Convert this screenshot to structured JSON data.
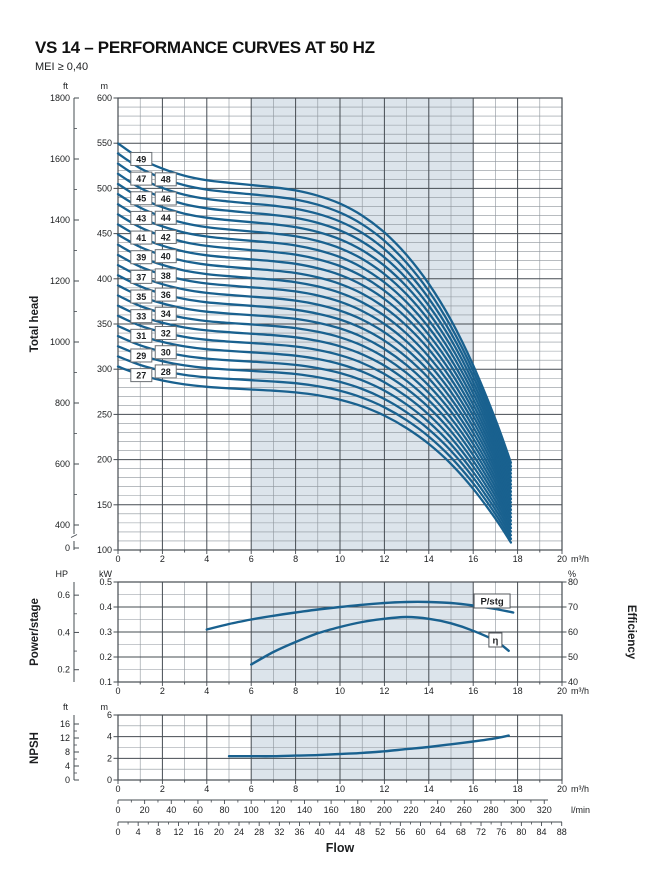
{
  "header": {
    "title": "VS 14 – PERFORMANCE CURVES AT 50 HZ",
    "mei": "MEI ≥ 0,40"
  },
  "colors": {
    "curve": "#19618f",
    "duty_band": "#dce4eb",
    "grid_minor": "#8d949b",
    "grid_major": "#464c52",
    "text": "#1c1e20"
  },
  "flow_axis": {
    "ticks": [
      0,
      2,
      4,
      6,
      8,
      10,
      12,
      14,
      16,
      18,
      20
    ],
    "minor_step": 1,
    "max": 20,
    "unit": "m³/h",
    "duty_band": [
      6,
      16
    ]
  },
  "chart_data": [
    {
      "type": "line",
      "name": "total-head",
      "axis_title": "Total head",
      "y_axis_m": {
        "unit": "m",
        "ticks": [
          600,
          550,
          500,
          450,
          400,
          350,
          300,
          250,
          200,
          150,
          100
        ],
        "minor_step": 10,
        "min": 100,
        "max": 600
      },
      "ft_ruler": {
        "unit": "ft",
        "labels": [
          1800,
          1600,
          1400,
          1200,
          1000,
          800,
          600,
          400,
          0
        ]
      },
      "stages": [
        27,
        28,
        29,
        30,
        31,
        32,
        33,
        34,
        35,
        36,
        37,
        38,
        39,
        40,
        41,
        42,
        43,
        44,
        45,
        46,
        47,
        48,
        49
      ],
      "q_samples": [
        0,
        1,
        2,
        3,
        4,
        5,
        6,
        7,
        8,
        9,
        10,
        11,
        12,
        13,
        14,
        15,
        16,
        17,
        17.7
      ],
      "per_stage_head_m": [
        11.22,
        10.88,
        10.65,
        10.49,
        10.39,
        10.33,
        10.28,
        10.23,
        10.16,
        10.04,
        9.86,
        9.59,
        9.21,
        8.7,
        8.05,
        7.23,
        6.21,
        4.99,
        4.01
      ],
      "stage_label_q": {
        "odd": 1.05,
        "even": 2.15
      }
    },
    {
      "type": "line",
      "name": "power-efficiency",
      "axis_title": "Power/stage",
      "right_axis_title": "Efficiency",
      "kw_axis": {
        "unit": "kW",
        "ticks": [
          "0.5",
          "0.4",
          "0.3",
          "0.2",
          "0.1"
        ],
        "minor": [
          0.45,
          0.35,
          0.25,
          0.15
        ],
        "major": [
          0.4,
          0.3,
          0.2
        ],
        "min": 0.1,
        "max": 0.5
      },
      "hp_ruler": {
        "unit": "HP",
        "labels": [
          "0.6",
          "0.4",
          "0.2"
        ],
        "minor": [
          0.5,
          0.3
        ]
      },
      "pct_axis": {
        "unit": "%",
        "ticks": [
          80,
          70,
          60,
          50,
          40
        ],
        "min": 40,
        "max": 80
      },
      "series": [
        {
          "label": "P/stg",
          "axis": "kW",
          "points": [
            [
              4,
              0.31
            ],
            [
              5,
              0.332
            ],
            [
              6,
              0.35
            ],
            [
              7,
              0.365
            ],
            [
              8,
              0.378
            ],
            [
              9,
              0.39
            ],
            [
              10,
              0.4
            ],
            [
              11,
              0.409
            ],
            [
              12,
              0.416
            ],
            [
              13,
              0.42
            ],
            [
              14,
              0.42
            ],
            [
              15,
              0.416
            ],
            [
              16,
              0.406
            ],
            [
              17,
              0.392
            ],
            [
              17.8,
              0.378
            ]
          ],
          "label_at": [
            16.85,
            0.424
          ]
        },
        {
          "label": "η",
          "axis": "%",
          "points": [
            [
              6,
              47
            ],
            [
              7,
              52
            ],
            [
              8,
              56
            ],
            [
              9,
              59.5
            ],
            [
              10,
              62
            ],
            [
              11,
              64
            ],
            [
              12,
              65.3
            ],
            [
              13,
              66
            ],
            [
              14,
              65.3
            ],
            [
              15,
              63.5
            ],
            [
              16,
              60.5
            ],
            [
              17,
              56.5
            ],
            [
              17.6,
              52.5
            ]
          ],
          "label_at": [
            17.0,
            56.8
          ]
        }
      ]
    },
    {
      "type": "line",
      "name": "npsh",
      "axis_title": "NPSH",
      "m_axis": {
        "unit": "m",
        "ticks": [
          6,
          4,
          2,
          0
        ],
        "minor": [
          5,
          3,
          1
        ],
        "major": [
          4,
          2
        ],
        "min": 0,
        "max": 6
      },
      "ft_ruler": {
        "unit": "ft",
        "labels": [
          16,
          12,
          8,
          4,
          0
        ],
        "minor": [
          14,
          10,
          6,
          2
        ]
      },
      "points": [
        [
          5,
          2.2
        ],
        [
          6,
          2.2
        ],
        [
          7,
          2.2
        ],
        [
          8,
          2.25
        ],
        [
          9,
          2.3
        ],
        [
          10,
          2.4
        ],
        [
          11,
          2.5
        ],
        [
          12,
          2.65
        ],
        [
          13,
          2.85
        ],
        [
          14,
          3.05
        ],
        [
          15,
          3.3
        ],
        [
          16,
          3.55
        ],
        [
          17,
          3.85
        ],
        [
          17.6,
          4.1
        ]
      ]
    }
  ],
  "flow_scales": {
    "lmin": {
      "unit": "l/min",
      "ticks": [
        0,
        20,
        40,
        60,
        80,
        100,
        120,
        140,
        160,
        180,
        200,
        220,
        240,
        260,
        280,
        300,
        320
      ],
      "minor_step": 10,
      "per_m3h": 16.6667
    },
    "scale3": {
      "ticks": [
        0,
        4,
        8,
        12,
        16,
        20,
        24,
        28,
        32,
        36,
        40,
        44,
        48,
        52,
        56,
        60,
        64,
        68,
        72,
        76,
        80,
        84,
        88
      ],
      "minor_step": 2,
      "per_m3h": 4.4029
    },
    "label": "Flow"
  }
}
